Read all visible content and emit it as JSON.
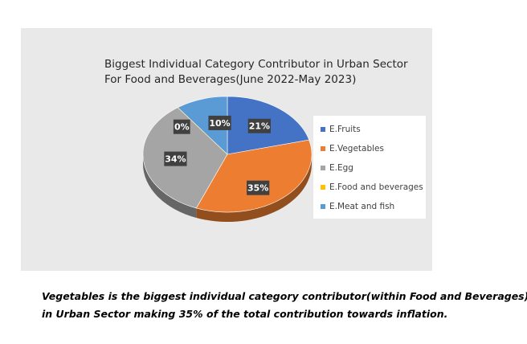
{
  "chart_data": {
    "type": "pie",
    "title_line1": "Biggest Individual Category Contributor in Urban Sector",
    "title_line2": "For Food and Beverages(June 2022-May 2023)",
    "categories": [
      "E.Fruits",
      "E.Vegetables",
      "E.Egg",
      "E.Food and beverages",
      "E.Meat and fish"
    ],
    "values": [
      21,
      35,
      34,
      0,
      10
    ],
    "data_labels": [
      "21%",
      "35%",
      "34%",
      "0%",
      "10%"
    ],
    "colors": [
      "#4472c4",
      "#ed7d31",
      "#a5a5a5",
      "#ffc000",
      "#5b9bd5"
    ],
    "legend_position": "right"
  },
  "caption": {
    "line1": "Vegetables is the biggest individual category contributor(within Food and Beverages)",
    "line2": " in Urban Sector making 35% of the total contribution towards inflation."
  }
}
